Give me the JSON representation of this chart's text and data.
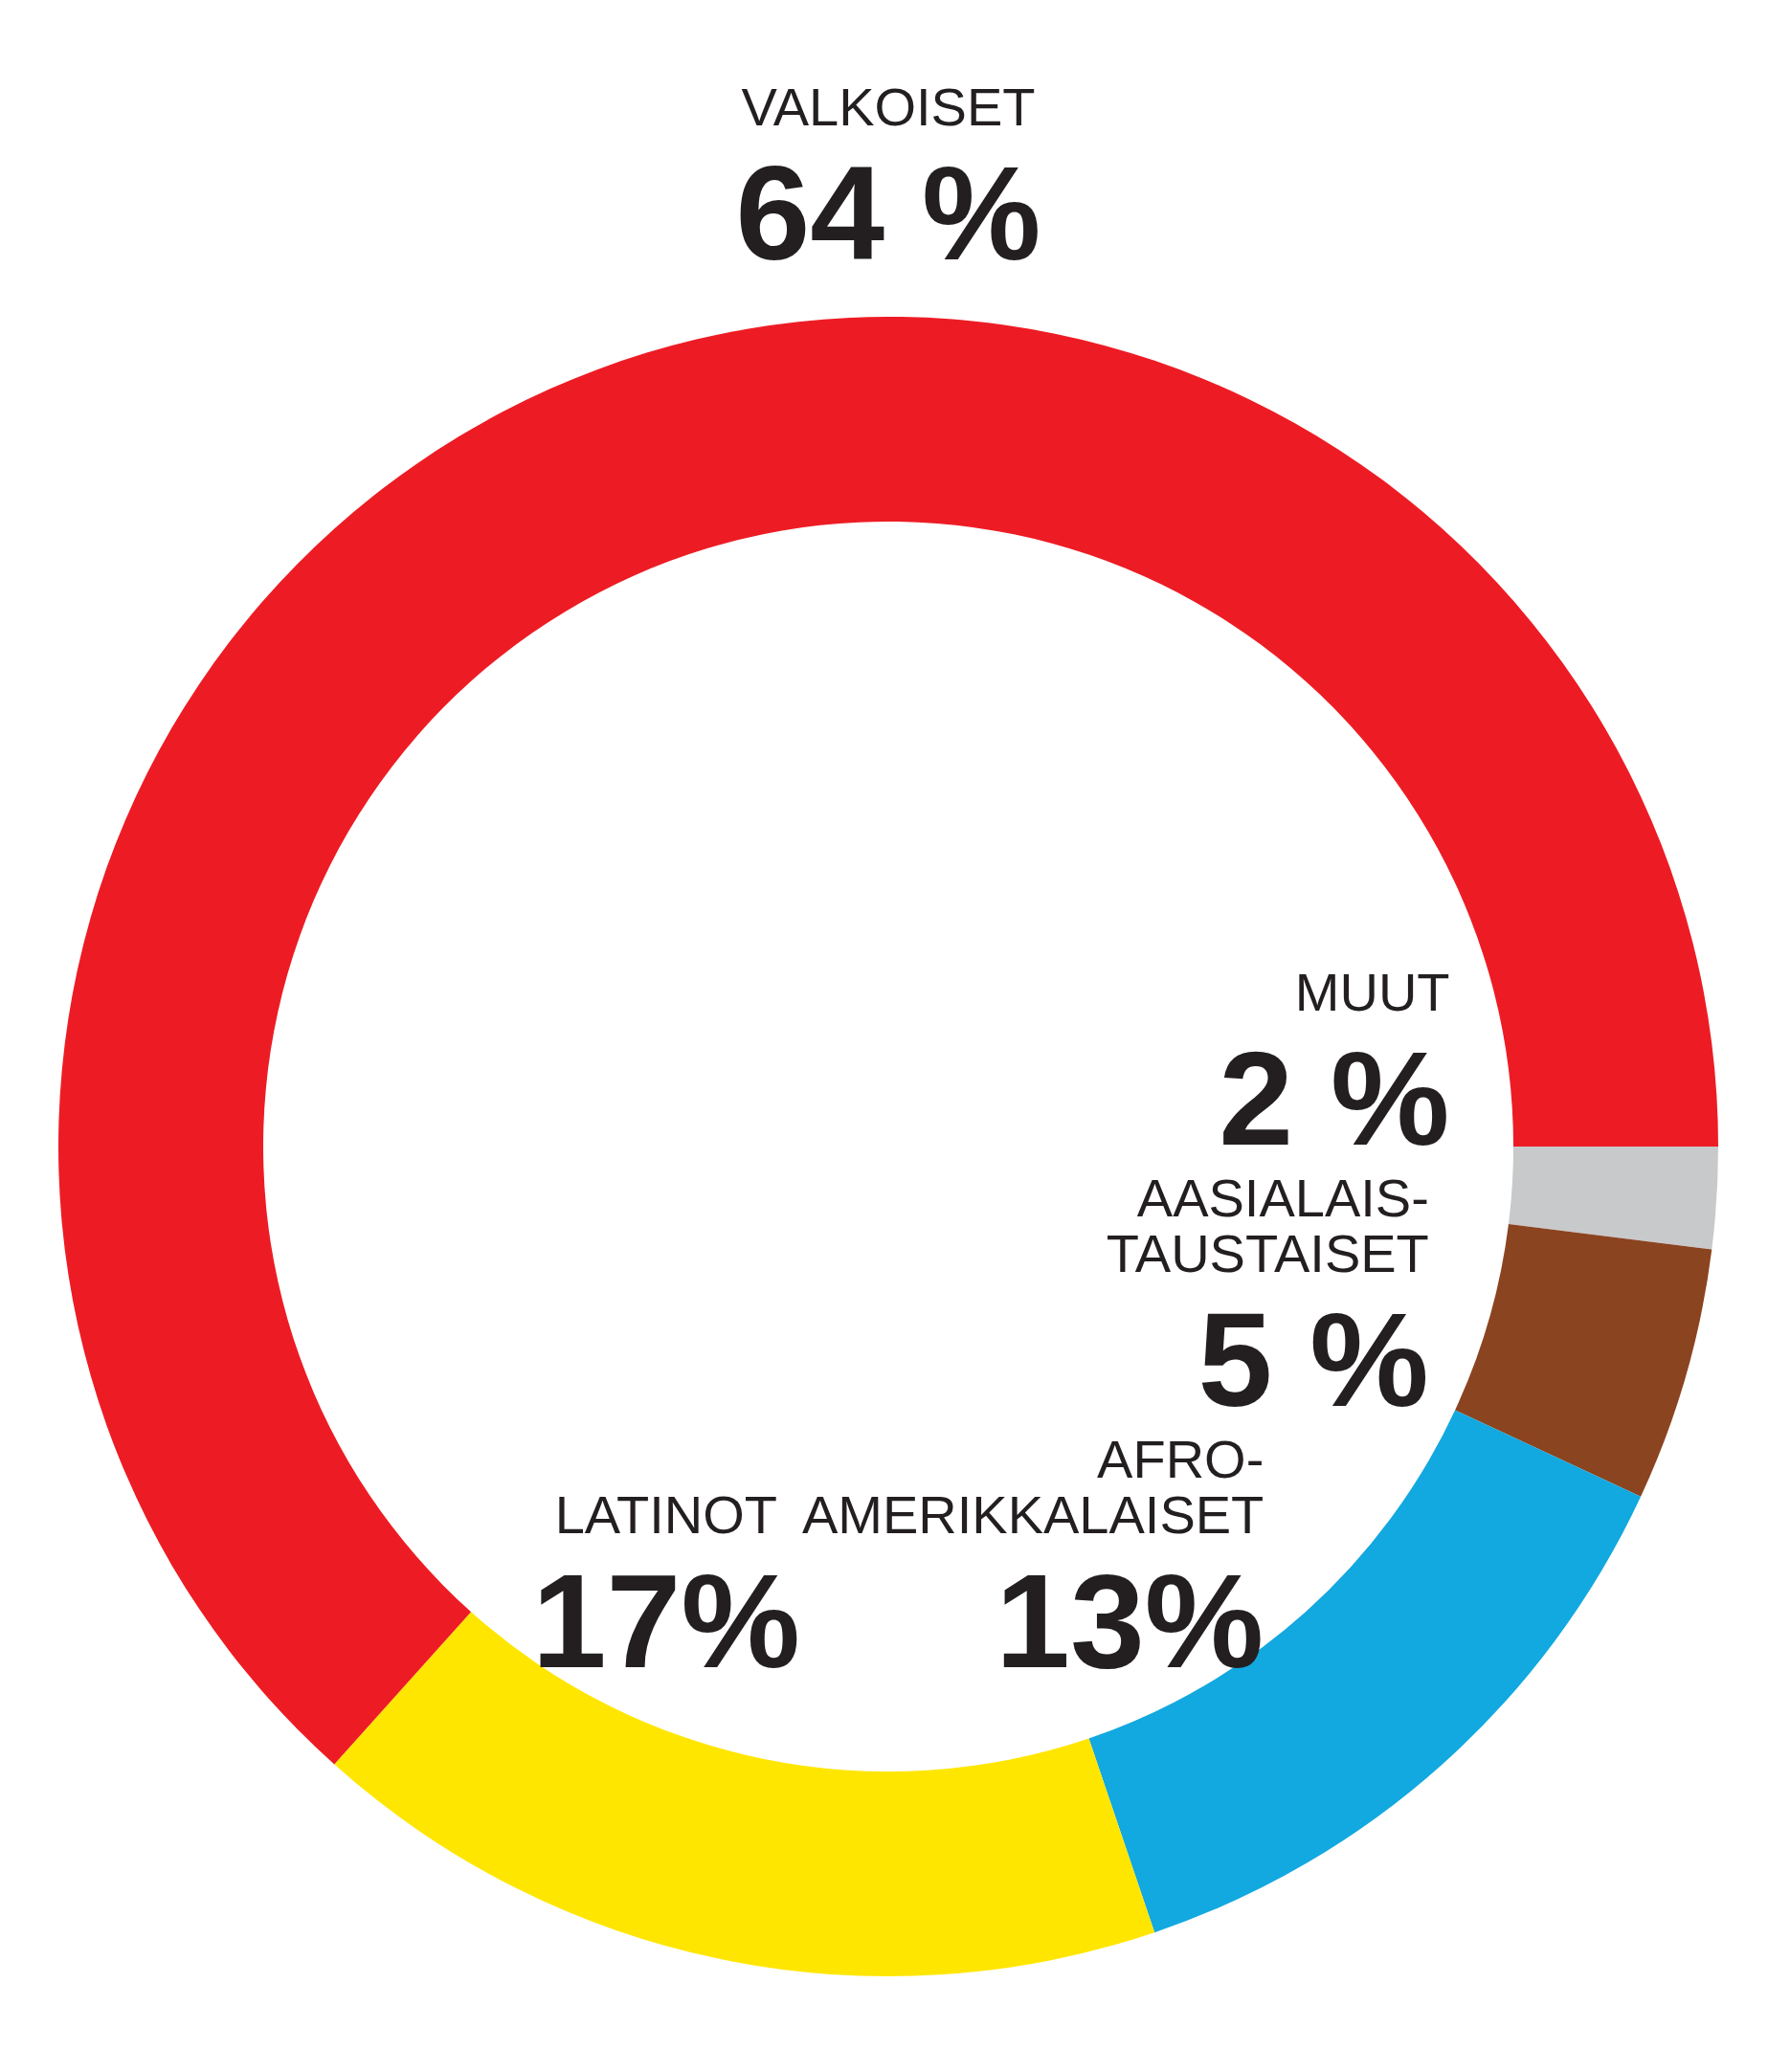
{
  "chart_data": {
    "type": "donut",
    "categories": [
      "MUUT",
      "AASIALAIS-\nTAUSTAISET",
      "AFRO-\nAMERIKKALAISET",
      "LATINOT",
      "VALKOISET"
    ],
    "values": [
      2,
      5,
      13,
      17,
      64
    ],
    "value_labels": [
      "2 %",
      "5 %",
      "13%",
      "17%",
      "64 %"
    ],
    "colors": [
      "#c8c9cb",
      "#8b4420",
      "#12a8e0",
      "#ffe600",
      "#ed1c24"
    ]
  }
}
